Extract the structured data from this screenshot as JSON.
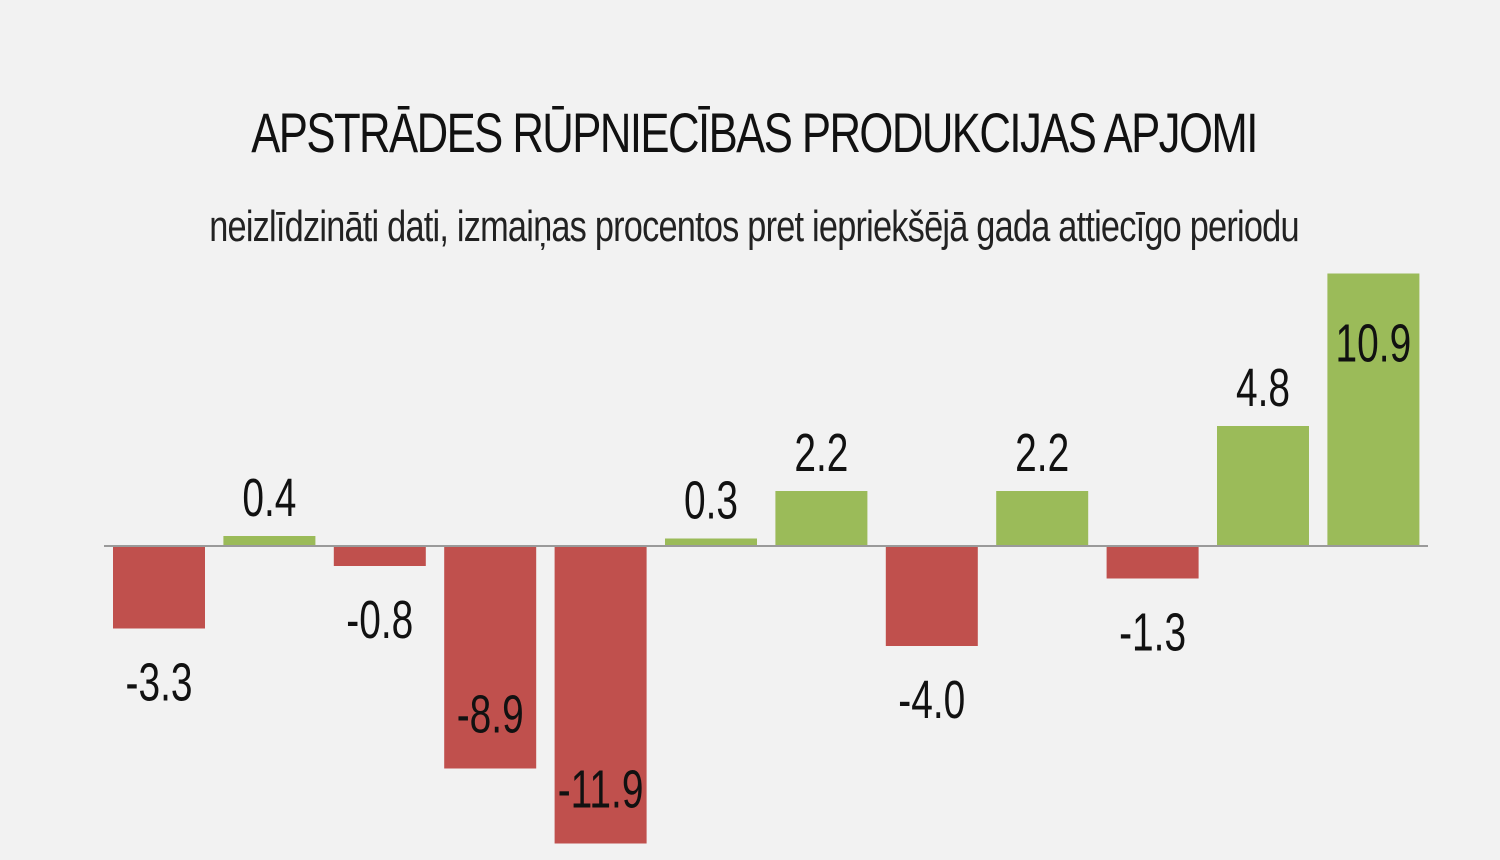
{
  "chart_data": {
    "type": "bar",
    "title": "APSTRĀDES RŪPNIECĪBAS PRODUKCIJAS APJOMI",
    "subtitle": "neizlīdzināti dati, izmaiņas procentos pret iepriekšējā gada attiecīgo periodu",
    "values": [
      -3.3,
      0.4,
      -0.8,
      -8.9,
      -11.9,
      0.3,
      2.2,
      -4.0,
      2.2,
      -1.3,
      4.8,
      10.9
    ],
    "value_labels": [
      "-3.3",
      "0.4",
      "-0.8",
      "-8.9",
      "-11.9",
      "0.3",
      "2.2",
      "-4.0",
      "2.2",
      "-1.3",
      "4.8",
      "10.9"
    ],
    "positive_color": "#9bbb59",
    "negative_color": "#c0504d",
    "xlabel": "",
    "ylabel": "",
    "grid": false,
    "legend": "none"
  }
}
